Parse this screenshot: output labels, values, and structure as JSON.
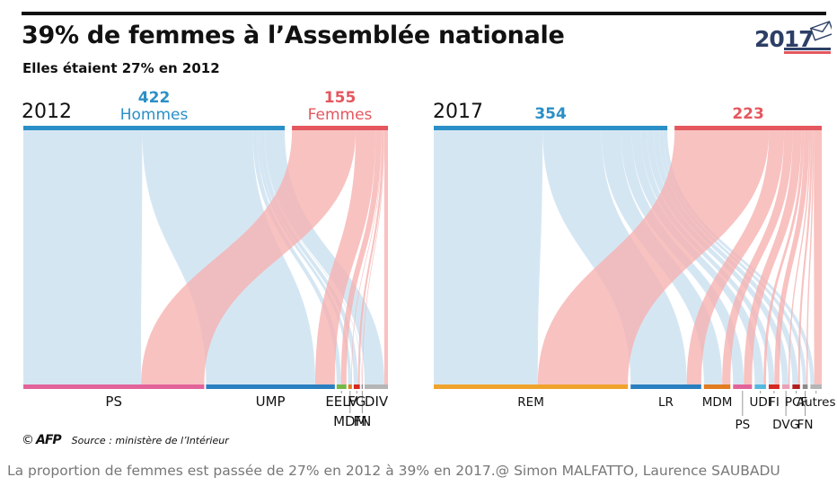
{
  "header": {
    "title": "39% de femmes à l’Assemblée nationale",
    "subtitle": "Elles étaient 27% en 2012",
    "logo_year": "2017"
  },
  "footer": {
    "copyright": "©",
    "agency": "AFP",
    "source": "Source : ministère de l’Intérieur",
    "caption": "La proportion de femmes est passée de 27% en 2012 à 39% en 2017.@ Simon MALFATTO, Laurence SAUBADU"
  },
  "colors": {
    "men": "#2a8fc7",
    "women": "#e4575e",
    "men_flow": "#c9dff0",
    "women_flow": "#f6b1af"
  },
  "chart_data": [
    {
      "type": "sankey",
      "year": "2012",
      "men": {
        "label": "Hommes",
        "value": 422
      },
      "women": {
        "label": "Femmes",
        "value": 155
      },
      "parties": [
        {
          "label": "PS",
          "men": 192,
          "women": 103,
          "color": "#e2639a"
        },
        {
          "label": "UMP",
          "men": 178,
          "women": 32,
          "color": "#2a7fc0"
        },
        {
          "label": "EELV",
          "men": 7,
          "women": 9,
          "color": "#74b84a"
        },
        {
          "label": "MDM",
          "men": 5,
          "women": 1,
          "color": "#e17c21"
        },
        {
          "label": "FG",
          "men": 7,
          "women": 3,
          "color": "#d6281f"
        },
        {
          "label": "FN",
          "men": 1,
          "women": 1,
          "color": "#8a8a8a"
        },
        {
          "label": "DIV",
          "men": 32,
          "women": 6,
          "color": "#b5b5b5"
        }
      ]
    },
    {
      "type": "sankey",
      "year": "2017",
      "men": {
        "label": "Hommes",
        "value": 354
      },
      "women": {
        "label": "Femmes",
        "value": 223
      },
      "parties": [
        {
          "label": "REM",
          "men": 165,
          "women": 143,
          "color": "#f0a32c"
        },
        {
          "label": "LR",
          "men": 89,
          "women": 23,
          "color": "#2a7fc0"
        },
        {
          "label": "MDM",
          "men": 29,
          "women": 13,
          "color": "#e17c21"
        },
        {
          "label": "PS",
          "men": 17,
          "women": 13,
          "color": "#e2639a"
        },
        {
          "label": "UDI",
          "men": 14,
          "women": 4,
          "color": "#55b8e0"
        },
        {
          "label": "FI",
          "men": 9,
          "women": 8,
          "color": "#d6281f"
        },
        {
          "label": "DVG",
          "men": 10,
          "women": 2,
          "color": "#e9a0b5"
        },
        {
          "label": "PCF",
          "men": 9,
          "women": 3,
          "color": "#b01e1e"
        },
        {
          "label": "FN",
          "men": 6,
          "women": 2,
          "color": "#8a8a8a"
        },
        {
          "label": "Autres",
          "men": 6,
          "women": 12,
          "color": "#b5b5b5"
        }
      ]
    }
  ]
}
